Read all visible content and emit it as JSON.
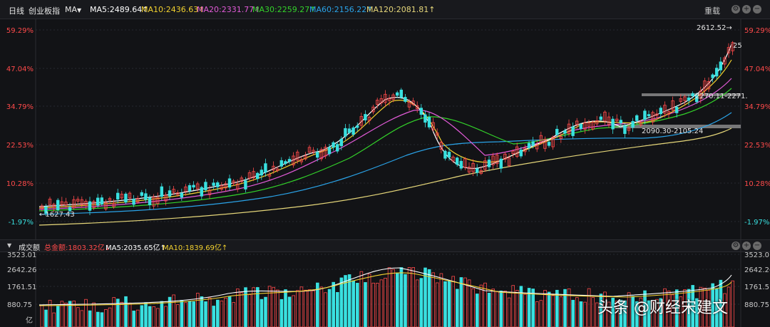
{
  "header": {
    "period_tab": "日线",
    "index_name": "创业板指",
    "indicator": "MA",
    "ma_items": [
      {
        "label": "MA5:2489.64↑",
        "color": "#ffffff"
      },
      {
        "label": "MA10:2436.63↑",
        "color": "#f2d12f"
      },
      {
        "label": "MA20:2331.77↑",
        "color": "#e25bd8"
      },
      {
        "label": "MA30:2259.27↑",
        "color": "#33d22a"
      },
      {
        "label": "MA60:2156.22↑",
        "color": "#2aa3e8"
      },
      {
        "label": "MA120:2081.81↑",
        "color": "#e6d77a"
      }
    ],
    "overlay_label": "重载"
  },
  "price_axis": {
    "ticks": [
      "59.29%",
      "47.04%",
      "34.79%",
      "22.53%",
      "10.28%",
      "-1.97%"
    ],
    "colors": {
      "up": "#ff4a4a",
      "down": "#39e0e0",
      "neutral": "#c9c9c9"
    }
  },
  "annotations": {
    "high": "2612.52→",
    "low": "←1627.43",
    "band_upper": "2270.11-2271.",
    "band_lower": "2090.30-2105.24",
    "right_edge": "25"
  },
  "volume_header": {
    "title": "成交额",
    "total": "总金额:1803.32亿↓",
    "ma5": "MA5:2035.65亿↑",
    "ma10": "MA10:1839.69亿↑"
  },
  "volume_axis": {
    "ticks": [
      "3523.01",
      "2642.26",
      "1761.51",
      "880.75"
    ],
    "unit": "亿"
  },
  "watermark": "头条 @财经宋建文"
}
